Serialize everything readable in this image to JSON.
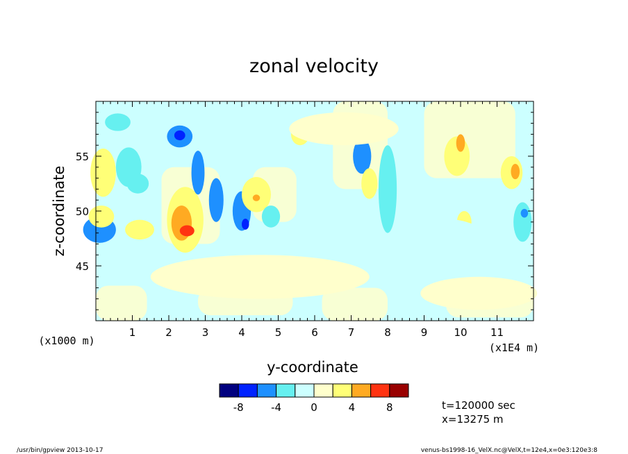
{
  "chart_data": {
    "type": "heatmap",
    "title": "zonal velocity",
    "xlabel": "y-coordinate",
    "ylabel": "z-coordinate",
    "x_units_label": "(x1E4 m)",
    "y_units_label": "(x1000 m)",
    "xlim": [
      0,
      12
    ],
    "ylim": [
      40,
      60
    ],
    "x_ticks": [
      "1",
      "2",
      "3",
      "4",
      "5",
      "6",
      "7",
      "8",
      "9",
      "10",
      "11"
    ],
    "x_tick_values": [
      1,
      2,
      3,
      4,
      5,
      6,
      7,
      8,
      9,
      10,
      11
    ],
    "y_ticks": [
      "45",
      "50",
      "55"
    ],
    "y_tick_values": [
      45,
      50,
      55
    ],
    "colorbar": {
      "bounds": [
        -10,
        -8,
        -6,
        -4,
        -2,
        0,
        2,
        4,
        6,
        8,
        10
      ],
      "colors": [
        "#00007f",
        "#0022ff",
        "#1e90ff",
        "#66f0f0",
        "#ccffff",
        "#ffffcc",
        "#ffff77",
        "#ffaa22",
        "#ff3311",
        "#990000"
      ],
      "tick_labels": [
        "-8",
        "-4",
        "0",
        "4",
        "8"
      ],
      "tick_values": [
        -8,
        -4,
        0,
        4,
        8
      ]
    },
    "annotations": {
      "time": "t=120000 sec",
      "position": "x=13275 m"
    },
    "blobs": [
      {
        "x": 0.6,
        "z": 58.1,
        "rx": 0.35,
        "rz": 0.8,
        "v": -2.5
      },
      {
        "x": 0.9,
        "z": 54.0,
        "rx": 0.35,
        "rz": 1.8,
        "v": -2.6
      },
      {
        "x": 1.15,
        "z": 52.5,
        "rx": 0.3,
        "rz": 0.9,
        "v": -3.2
      },
      {
        "x": 0.2,
        "z": 53.5,
        "rx": 0.35,
        "rz": 2.2,
        "v": 2.6
      },
      {
        "x": 0.1,
        "z": 48.3,
        "rx": 0.45,
        "rz": 1.2,
        "v": -4.3
      },
      {
        "x": 0.15,
        "z": 49.5,
        "rx": 0.35,
        "rz": 1.0,
        "v": 2.5
      },
      {
        "x": 1.2,
        "z": 48.3,
        "rx": 0.4,
        "rz": 0.9,
        "v": 2.6
      },
      {
        "x": 2.3,
        "z": 56.8,
        "rx": 0.35,
        "rz": 1.0,
        "v": -4.3
      },
      {
        "x": 2.3,
        "z": 56.9,
        "rx": 0.15,
        "rz": 0.45,
        "v": -6.5
      },
      {
        "x": 2.45,
        "z": 49.2,
        "rx": 0.5,
        "rz": 3.0,
        "v": 2.6
      },
      {
        "x": 2.35,
        "z": 48.9,
        "rx": 0.28,
        "rz": 1.6,
        "v": 4.5
      },
      {
        "x": 2.5,
        "z": 48.2,
        "rx": 0.2,
        "rz": 0.5,
        "v": 6.3
      },
      {
        "x": 2.8,
        "z": 53.5,
        "rx": 0.18,
        "rz": 2.0,
        "v": -4.2
      },
      {
        "x": 3.3,
        "z": 51.0,
        "rx": 0.2,
        "rz": 2.0,
        "v": -4.1
      },
      {
        "x": 4.0,
        "z": 50.0,
        "rx": 0.25,
        "rz": 1.8,
        "v": -4.3
      },
      {
        "x": 4.1,
        "z": 48.8,
        "rx": 0.1,
        "rz": 0.5,
        "v": -6.4
      },
      {
        "x": 4.4,
        "z": 51.5,
        "rx": 0.4,
        "rz": 1.6,
        "v": 2.6
      },
      {
        "x": 4.4,
        "z": 51.2,
        "rx": 0.1,
        "rz": 0.3,
        "v": 4.6
      },
      {
        "x": 4.8,
        "z": 49.5,
        "rx": 0.25,
        "rz": 1.0,
        "v": -2.6
      },
      {
        "x": 5.6,
        "z": 57.0,
        "rx": 0.25,
        "rz": 1.0,
        "v": 2.6
      },
      {
        "x": 7.3,
        "z": 55.0,
        "rx": 0.25,
        "rz": 1.6,
        "v": -4.2
      },
      {
        "x": 7.5,
        "z": 52.5,
        "rx": 0.22,
        "rz": 1.4,
        "v": 2.6
      },
      {
        "x": 8.0,
        "z": 52.0,
        "rx": 0.25,
        "rz": 4.0,
        "v": -2.6
      },
      {
        "x": 9.9,
        "z": 55.0,
        "rx": 0.35,
        "rz": 1.8,
        "v": 2.6
      },
      {
        "x": 10.0,
        "z": 56.2,
        "rx": 0.12,
        "rz": 0.8,
        "v": 4.6
      },
      {
        "x": 10.1,
        "z": 49.0,
        "rx": 0.2,
        "rz": 1.0,
        "v": 2.5
      },
      {
        "x": 11.4,
        "z": 53.5,
        "rx": 0.3,
        "rz": 1.5,
        "v": 2.6
      },
      {
        "x": 11.5,
        "z": 53.6,
        "rx": 0.12,
        "rz": 0.7,
        "v": 4.7
      },
      {
        "x": 11.7,
        "z": 49.0,
        "rx": 0.25,
        "rz": 1.8,
        "v": -2.7
      },
      {
        "x": 11.75,
        "z": 49.8,
        "rx": 0.1,
        "rz": 0.4,
        "v": -4.5
      },
      {
        "x": 9.5,
        "z": 47.5,
        "rx": 1.2,
        "rz": 1.8,
        "v": -1.2
      },
      {
        "x": 4.5,
        "z": 44.0,
        "rx": 3.0,
        "rz": 2.0,
        "v": 1.1
      },
      {
        "x": 10.5,
        "z": 42.5,
        "rx": 1.6,
        "rz": 1.5,
        "v": 1.1
      },
      {
        "x": 6.8,
        "z": 57.5,
        "rx": 1.5,
        "rz": 1.5,
        "v": 1.2
      }
    ],
    "footer": {
      "left": "/usr/bin/gpview   2013-10-17",
      "right": "venus-bs1998-16_VelX.nc@VelX,t=12e4,x=0e3:120e3:8"
    }
  }
}
